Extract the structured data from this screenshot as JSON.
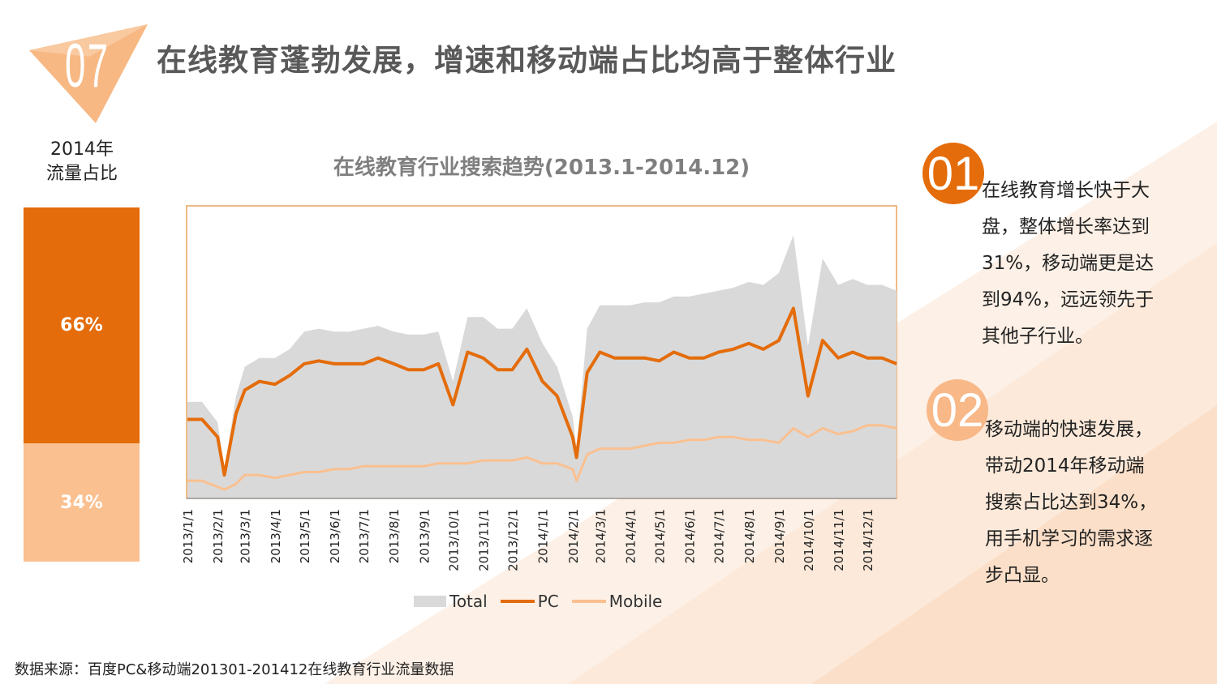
{
  "slide": {
    "number": "07",
    "title": "在线教育蓬勃发展，增速和移动端占比均高于整体行业",
    "accent_color": "#e46c0a",
    "light_color": "#fac090"
  },
  "share_panel": {
    "label_line1": "2014年",
    "label_line2": "流量占比",
    "pc_share": "66%",
    "mobile_share": "34%"
  },
  "points": [
    {
      "badge": "01",
      "text": "在线教育增长快于大盘，整体增长率达到31%，移动端更是达到94%，远远领先于其他子行业。"
    },
    {
      "badge": "02",
      "text": "移动端的快速发展，带动2014年移动端搜索占比达到34%，用手机学习的需求逐步凸显。"
    }
  ],
  "source": "数据来源：百度PC&移动端201301-201412在线教育行业流量数据",
  "chart_data": {
    "type": "area",
    "title": "在线教育行业搜索趋势(2013.1-2014.12)",
    "xlabel": "",
    "ylabel": "",
    "y_axis_labels_shown": false,
    "ylim": [
      0,
      100
    ],
    "grid": false,
    "legend_placement": "bottom",
    "tick_labels": [
      "2013/1/1",
      "2013/2/1",
      "2013/3/1",
      "2013/4/1",
      "2013/5/1",
      "2013/6/1",
      "2013/7/1",
      "2013/8/1",
      "2013/9/1",
      "2013/10/1",
      "2013/11/1",
      "2013/12/1",
      "2014/1/1",
      "2014/2/1",
      "2014/3/1",
      "2014/4/1",
      "2014/5/1",
      "2014/6/1",
      "2014/7/1",
      "2014/8/1",
      "2014/9/1",
      "2014/10/1",
      "2014/11/1",
      "2014/12/1"
    ],
    "xlim": [
      "2013/1/1",
      "2014/12/31"
    ],
    "x": [
      "2013/1/1",
      "2013/1/16",
      "2013/2/1",
      "2013/2/8",
      "2013/2/20",
      "2013/3/1",
      "2013/3/16",
      "2013/4/1",
      "2013/4/16",
      "2013/5/1",
      "2013/5/16",
      "2013/6/1",
      "2013/6/16",
      "2013/7/1",
      "2013/7/16",
      "2013/8/1",
      "2013/8/16",
      "2013/9/1",
      "2013/9/16",
      "2013/10/1",
      "2013/10/16",
      "2013/11/1",
      "2013/11/16",
      "2013/12/1",
      "2013/12/16",
      "2014/1/1",
      "2014/1/16",
      "2014/2/1",
      "2014/2/5",
      "2014/2/16",
      "2014/3/1",
      "2014/3/16",
      "2014/4/1",
      "2014/4/16",
      "2014/5/1",
      "2014/5/16",
      "2014/6/1",
      "2014/6/16",
      "2014/7/1",
      "2014/7/16",
      "2014/8/1",
      "2014/8/16",
      "2014/9/1",
      "2014/9/16",
      "2014/10/1",
      "2014/10/16",
      "2014/11/1",
      "2014/11/16",
      "2014/12/1",
      "2014/12/16",
      "2014/12/31"
    ],
    "series": [
      {
        "name": "Total",
        "kind": "area",
        "color": "#d9d9d9",
        "values": [
          33,
          33,
          26,
          10,
          35,
          45,
          48,
          48,
          51,
          57,
          58,
          57,
          57,
          58,
          59,
          57,
          56,
          56,
          57,
          40,
          62,
          62,
          58,
          58,
          65,
          53,
          45,
          28,
          17,
          58,
          66,
          66,
          66,
          67,
          67,
          69,
          69,
          70,
          71,
          72,
          74,
          73,
          77,
          90,
          52,
          82,
          73,
          75,
          73,
          73,
          71
        ]
      },
      {
        "name": "PC",
        "kind": "line",
        "color": "#e46c0a",
        "values": [
          27,
          27,
          21,
          8,
          29,
          37,
          40,
          39,
          42,
          46,
          47,
          46,
          46,
          46,
          48,
          46,
          44,
          44,
          46,
          32,
          50,
          48,
          44,
          44,
          51,
          40,
          35,
          21,
          14,
          43,
          50,
          48,
          48,
          48,
          47,
          50,
          48,
          48,
          50,
          51,
          53,
          51,
          54,
          65,
          35,
          54,
          48,
          50,
          48,
          48,
          46
        ]
      },
      {
        "name": "Mobile",
        "kind": "line",
        "color": "#fac090",
        "values": [
          6,
          6,
          4,
          3,
          5,
          8,
          8,
          7,
          8,
          9,
          9,
          10,
          10,
          11,
          11,
          11,
          11,
          11,
          12,
          12,
          12,
          13,
          13,
          13,
          14,
          12,
          12,
          10,
          6,
          15,
          17,
          17,
          17,
          18,
          19,
          19,
          20,
          20,
          21,
          21,
          20,
          20,
          19,
          24,
          21,
          24,
          22,
          23,
          25,
          25,
          24
        ]
      }
    ]
  }
}
